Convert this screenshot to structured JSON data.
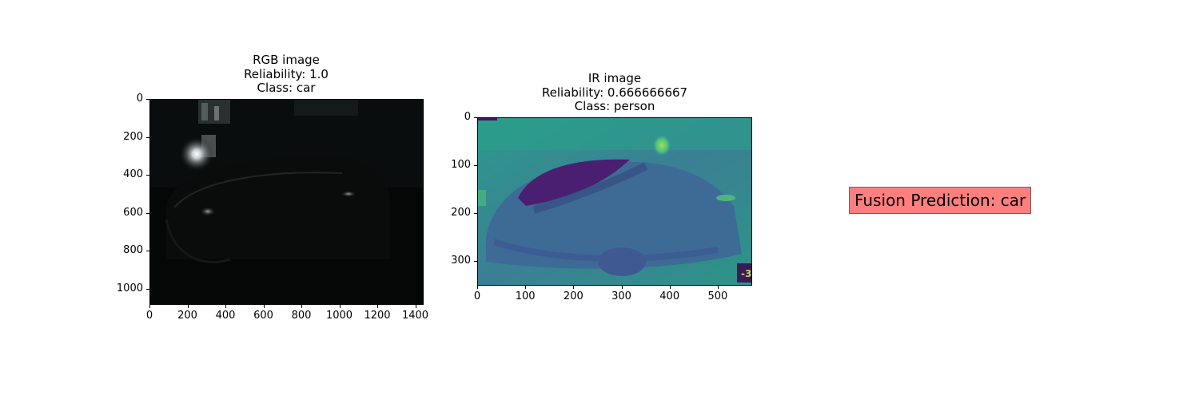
{
  "panels": [
    {
      "id": "rgb",
      "title_lines": [
        "RGB image",
        "Reliability: 1.0",
        "Class: car"
      ],
      "x_ticks": [
        "0",
        "200",
        "400",
        "600",
        "800",
        "1000",
        "1200",
        "1400"
      ],
      "x_tick_values": [
        0,
        200,
        400,
        600,
        800,
        1000,
        1200,
        1400
      ],
      "x_range": [
        0,
        1440
      ],
      "y_ticks": [
        "0",
        "200",
        "400",
        "600",
        "800",
        "1000"
      ],
      "y_tick_values": [
        0,
        200,
        400,
        600,
        800,
        1000
      ],
      "y_range": [
        0,
        1080
      ]
    },
    {
      "id": "ir",
      "title_lines": [
        "IR image",
        "Reliability: 0.666666667",
        "Class: person"
      ],
      "x_ticks": [
        "0",
        "100",
        "200",
        "300",
        "400",
        "500"
      ],
      "x_tick_values": [
        0,
        100,
        200,
        300,
        400,
        500
      ],
      "x_range": [
        0,
        570
      ],
      "y_ticks": [
        "0",
        "100",
        "200",
        "300"
      ],
      "y_tick_values": [
        0,
        100,
        200,
        300
      ],
      "y_range": [
        0,
        350
      ],
      "overlay_text": "-3"
    }
  ],
  "fusion": {
    "label": "Fusion Prediction: car",
    "color": "#ff7f7f"
  }
}
